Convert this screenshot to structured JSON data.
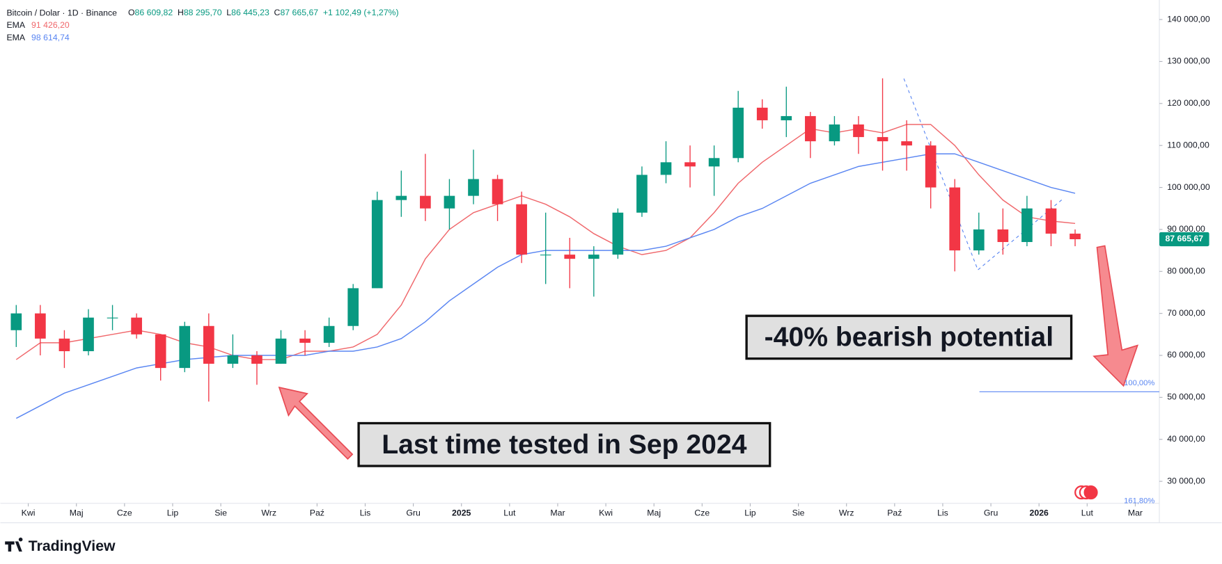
{
  "chart_data": {
    "type": "candlestick",
    "header": {
      "symbol": "Bitcoin / Dolar · 1D · Binance",
      "ohlc": [
        {
          "key": "O",
          "value": "86 609,82"
        },
        {
          "key": "H",
          "value": "88 295,70"
        },
        {
          "key": "L",
          "value": "86 445,23"
        },
        {
          "key": "C",
          "value": "87 665,67"
        }
      ],
      "change": "+1 102,49 (+1,27%)"
    },
    "xlim": [
      -0.58,
      23.5
    ],
    "xticks": [
      {
        "value": 0,
        "label": "Kwi"
      },
      {
        "value": 1,
        "label": "Maj"
      },
      {
        "value": 2,
        "label": "Cze"
      },
      {
        "value": 3,
        "label": "Lip"
      },
      {
        "value": 4,
        "label": "Sie"
      },
      {
        "value": 5,
        "label": "Wrz"
      },
      {
        "value": 6,
        "label": "Paź"
      },
      {
        "value": 7,
        "label": "Lis"
      },
      {
        "value": 8,
        "label": "Gru"
      },
      {
        "value": 9,
        "label": "2025"
      },
      {
        "value": 10,
        "label": "Lut"
      },
      {
        "value": 11,
        "label": "Mar"
      },
      {
        "value": 12,
        "label": "Kwi"
      },
      {
        "value": 13,
        "label": "Maj"
      },
      {
        "value": 14,
        "label": "Cze"
      },
      {
        "value": 15,
        "label": "Lip"
      },
      {
        "value": 16,
        "label": "Sie"
      },
      {
        "value": 17,
        "label": "Wrz"
      },
      {
        "value": 18,
        "label": "Paź"
      },
      {
        "value": 19,
        "label": "Lis"
      },
      {
        "value": 20,
        "label": "Gru"
      },
      {
        "value": 21,
        "label": "2026"
      },
      {
        "value": 22,
        "label": "Lut"
      },
      {
        "value": 23,
        "label": "Mar"
      }
    ],
    "ylim": [
      24760,
      144650
    ],
    "yticks": [
      {
        "value": 140000,
        "label": "140 000,00"
      },
      {
        "value": 130000,
        "label": "130 000,00"
      },
      {
        "value": 120000,
        "label": "120 000,00"
      },
      {
        "value": 110000,
        "label": "110 000,00"
      },
      {
        "value": 100000,
        "label": "100 000,00"
      },
      {
        "value": 90000,
        "label": "90 000,00"
      },
      {
        "value": 80000,
        "label": "80 000,00"
      },
      {
        "value": 70000,
        "label": "70 000,00"
      },
      {
        "value": 60000,
        "label": "60 000,00"
      },
      {
        "value": 50000,
        "label": "50 000,00"
      },
      {
        "value": 40000,
        "label": "40 000,00"
      },
      {
        "value": 30000,
        "label": "30 000,00"
      }
    ],
    "grid": false,
    "up_color": "#089981",
    "down_color": "#f23645",
    "x": [
      -0.25,
      0.25,
      0.75,
      1.25,
      1.75,
      2.25,
      2.75,
      3.25,
      3.75,
      4.25,
      4.75,
      5.25,
      5.75,
      6.25,
      6.75,
      7.25,
      7.75,
      8.25,
      8.75,
      9.25,
      9.75,
      10.25,
      10.75,
      11.25,
      11.75,
      12.25,
      12.75,
      13.25,
      13.75,
      14.25,
      14.75,
      15.25,
      15.75,
      16.25,
      16.75,
      17.25,
      17.75,
      18.25,
      18.75,
      19.25,
      19.75,
      20.25,
      20.75,
      21.25,
      21.75
    ],
    "open": [
      66000,
      70000,
      64000,
      61000,
      69000,
      69000,
      65000,
      57000,
      67000,
      58000,
      60000,
      58000,
      64000,
      63000,
      67000,
      76000,
      97000,
      98000,
      95000,
      98000,
      102000,
      96000,
      84000,
      84000,
      83000,
      84000,
      94000,
      103000,
      106000,
      105000,
      107000,
      119000,
      116000,
      117000,
      111000,
      115000,
      112000,
      111000,
      110000,
      100000,
      85000,
      90000,
      87000,
      95000,
      89000
    ],
    "high": [
      72000,
      72000,
      66000,
      71000,
      72000,
      70000,
      65000,
      68000,
      70000,
      65000,
      61000,
      66000,
      66000,
      69000,
      77000,
      99000,
      104000,
      108000,
      102000,
      109000,
      103000,
      99000,
      94000,
      88000,
      86000,
      95000,
      105000,
      111000,
      110000,
      110000,
      123000,
      121000,
      124000,
      118000,
      117000,
      117000,
      126000,
      116000,
      111000,
      102000,
      94000,
      95000,
      98000,
      97000,
      90000
    ],
    "low": [
      62000,
      60000,
      57000,
      60000,
      66000,
      64000,
      54000,
      56000,
      49000,
      57000,
      53000,
      58000,
      60000,
      62000,
      66000,
      76000,
      93000,
      92000,
      90000,
      96000,
      92000,
      82000,
      77000,
      76000,
      74000,
      83000,
      93000,
      101000,
      100000,
      98000,
      106000,
      114000,
      112000,
      107000,
      110000,
      108000,
      104000,
      104000,
      95000,
      80000,
      84000,
      84000,
      86000,
      86000,
      86000
    ],
    "close": [
      70000,
      64000,
      61000,
      69000,
      69000,
      65000,
      57000,
      67000,
      58000,
      60000,
      58000,
      64000,
      63000,
      67000,
      76000,
      97000,
      98000,
      95000,
      98000,
      102000,
      96000,
      84000,
      84000,
      83000,
      84000,
      94000,
      103000,
      106000,
      105000,
      107000,
      119000,
      116000,
      117000,
      111000,
      115000,
      112000,
      111000,
      110000,
      100000,
      85000,
      90000,
      87000,
      95000,
      89000,
      87665.67
    ],
    "last_price_label": "87 665,67",
    "series": [
      {
        "name": "EMA",
        "color": "#f0686c",
        "last_label": "91 426,20",
        "values": [
          59000,
          63000,
          63000,
          64000,
          65000,
          66000,
          65000,
          63000,
          62000,
          60000,
          59000,
          59000,
          61000,
          61000,
          62000,
          65000,
          72000,
          83000,
          90000,
          94000,
          96000,
          98000,
          96000,
          93000,
          89000,
          86000,
          84000,
          85000,
          88000,
          94000,
          101000,
          106000,
          110000,
          114000,
          113000,
          114000,
          113000,
          115000,
          115000,
          110000,
          103000,
          97000,
          93000,
          92000,
          91426.2
        ]
      },
      {
        "name": "EMA",
        "color": "#5a86f2",
        "last_label": "98 614,74",
        "values": [
          45000,
          48000,
          51000,
          53000,
          55000,
          57000,
          58000,
          59000,
          59500,
          60000,
          60000,
          60000,
          60000,
          61000,
          61000,
          62000,
          64000,
          68000,
          73000,
          77000,
          81000,
          84000,
          85000,
          85000,
          85000,
          85000,
          85000,
          86000,
          88000,
          90000,
          93000,
          95000,
          98000,
          101000,
          103000,
          105000,
          106000,
          107000,
          108000,
          108000,
          106000,
          104000,
          102000,
          100000,
          98614.74
        ]
      }
    ],
    "fib_level": {
      "value": 51330,
      "label": "100,00%"
    },
    "fib_label_low": "161,80%",
    "annotations": [
      "-40% bearish potential",
      "Last time tested in Sep 2024"
    ],
    "brand": "TradingView"
  }
}
